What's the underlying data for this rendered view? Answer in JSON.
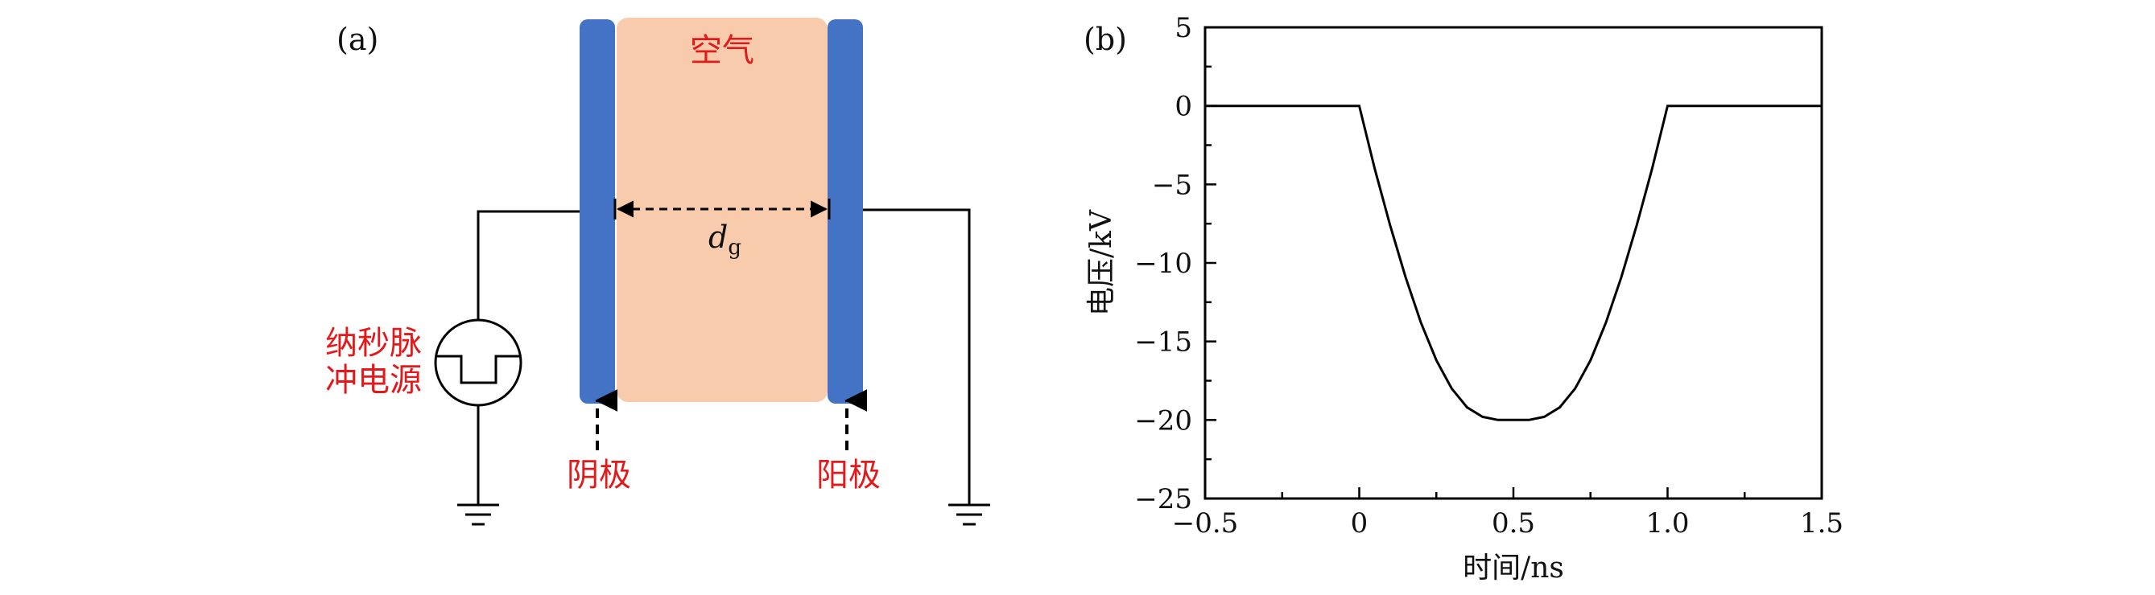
{
  "panel_a": {
    "label": "(a)",
    "gap_label": "空气",
    "distance_label": "d",
    "distance_sub": "g",
    "source_label_line1": "纳秒脉",
    "source_label_line2": "冲电源",
    "cathode_label": "阴极",
    "anode_label": "阳极",
    "colors": {
      "electrode": "#4472c4",
      "gap": "#f8cbad",
      "label": "#e31a1c"
    }
  },
  "panel_b": {
    "label": "(b)",
    "chart_data": {
      "type": "line",
      "xlabel": "时间/ns",
      "ylabel": "电压/kV",
      "xlim": [
        -0.5,
        1.5
      ],
      "ylim": [
        -25,
        5
      ],
      "xticks": [
        -0.5,
        0,
        0.5,
        1.0,
        1.5
      ],
      "xtick_labels": [
        "−0.5",
        "0",
        "0.5",
        "1.0",
        "1.5"
      ],
      "yticks": [
        5,
        0,
        -5,
        -10,
        -15,
        -20,
        -25
      ],
      "ytick_labels": [
        "5",
        "0",
        "−5",
        "−10",
        "−15",
        "−20",
        "−25"
      ],
      "series": [
        {
          "x": [
            -0.5,
            0,
            0.05,
            0.1,
            0.15,
            0.2,
            0.25,
            0.3,
            0.35,
            0.4,
            0.45,
            0.5,
            0.55,
            0.6,
            0.65,
            0.7,
            0.75,
            0.8,
            0.85,
            0.9,
            0.95,
            1.0,
            1.5
          ],
          "y": [
            0,
            0,
            -4.0,
            -7.6,
            -10.9,
            -13.8,
            -16.2,
            -18.0,
            -19.2,
            -19.8,
            -20.0,
            -20.0,
            -20.0,
            -19.8,
            -19.2,
            -18.0,
            -16.2,
            -13.8,
            -10.9,
            -7.6,
            -4.0,
            0,
            0
          ],
          "color": "#000000"
        }
      ],
      "grid": false
    }
  }
}
